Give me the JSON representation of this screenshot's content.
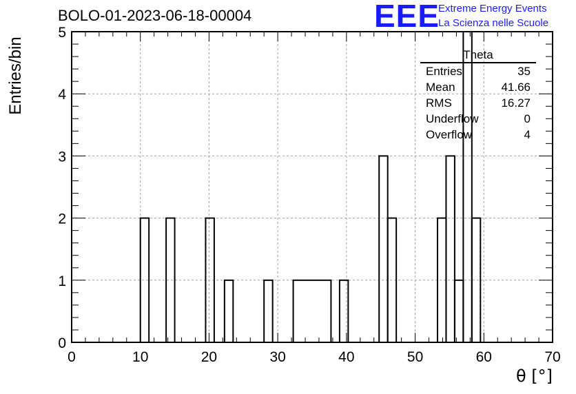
{
  "header": {
    "title": "BOLO-01-2023-06-18-00004",
    "logo_mark": "EEE",
    "logo_line1": "Extreme Energy Events",
    "logo_line2": "La Scienza nelle Scuole"
  },
  "stats": {
    "title": "Theta",
    "rows": [
      {
        "label": "Entries",
        "value": "35"
      },
      {
        "label": "Mean",
        "value": "41.66"
      },
      {
        "label": "RMS",
        "value": "16.27"
      },
      {
        "label": "Underflow",
        "value": "0"
      },
      {
        "label": "Overflow",
        "value": "4"
      }
    ]
  },
  "chart_data": {
    "type": "bar",
    "title": "BOLO-01-2023-06-18-00004",
    "xlabel": "θ [°]",
    "ylabel": "Entries/bin",
    "xlim": [
      0,
      70
    ],
    "ylim": [
      0,
      5
    ],
    "grid": true,
    "bin_width": 1.25,
    "x_ticks": [
      0,
      10,
      20,
      30,
      40,
      50,
      60,
      70
    ],
    "y_ticks": [
      0,
      1,
      2,
      3,
      4,
      5
    ],
    "bins": [
      {
        "x0": 10.0,
        "x1": 11.25,
        "count": 2
      },
      {
        "x0": 13.75,
        "x1": 15.0,
        "count": 2
      },
      {
        "x0": 19.5,
        "x1": 20.75,
        "count": 2
      },
      {
        "x0": 22.25,
        "x1": 23.5,
        "count": 1
      },
      {
        "x0": 28.0,
        "x1": 29.25,
        "count": 1
      },
      {
        "x0": 32.25,
        "x1": 37.75,
        "count": 1
      },
      {
        "x0": 39.0,
        "x1": 40.25,
        "count": 1
      },
      {
        "x0": 44.75,
        "x1": 46.0,
        "count": 3
      },
      {
        "x0": 46.0,
        "x1": 47.25,
        "count": 2
      },
      {
        "x0": 53.25,
        "x1": 54.5,
        "count": 2
      },
      {
        "x0": 54.5,
        "x1": 55.75,
        "count": 3
      },
      {
        "x0": 55.75,
        "x1": 57.0,
        "count": 1
      },
      {
        "x0": 57.0,
        "x1": 58.25,
        "count": 5
      },
      {
        "x0": 58.25,
        "x1": 59.5,
        "count": 2
      }
    ]
  }
}
